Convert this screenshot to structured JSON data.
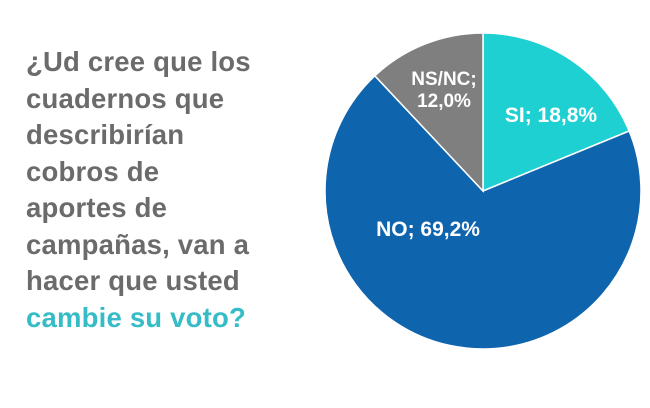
{
  "question": {
    "lines": [
      "¿Ud cree que los",
      "cuadernos que",
      "describirían",
      "cobros de",
      "aportes de",
      "campañas, van a",
      "hacer que usted"
    ],
    "highlight": "cambie su voto?",
    "text_color": "#6b6b6b",
    "highlight_color": "#35bcc6"
  },
  "chart_data": {
    "type": "pie",
    "title": "",
    "slices": [
      {
        "label": "SI",
        "value": 18.8,
        "display": "SI; 18,8%",
        "color": "#1fd0d2"
      },
      {
        "label": "NO",
        "value": 69.2,
        "display": "NO; 69,2%",
        "color": "#0f64ae"
      },
      {
        "label": "NS/NC",
        "value": 12.0,
        "display_lines": [
          "NS/NC;",
          "12,0%"
        ],
        "color": "#7f7f80"
      }
    ],
    "start": "12 o'clock",
    "direction": "clockwise",
    "legend": "none",
    "labels": "inside slices"
  }
}
